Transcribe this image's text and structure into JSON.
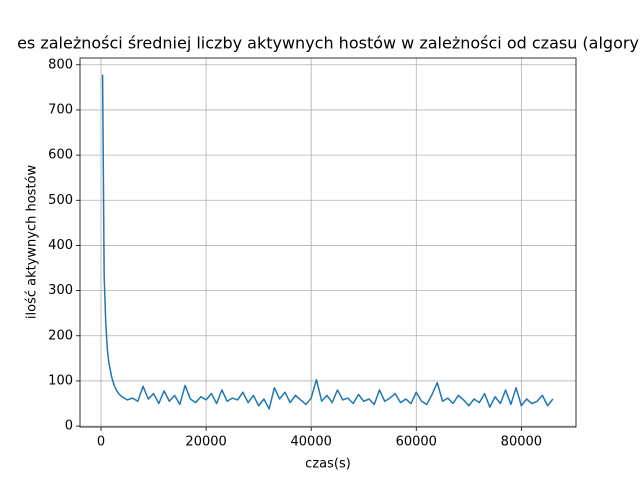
{
  "chart_data": {
    "type": "line",
    "title": "es zależności średniej liczby aktywnych hostów w zależności od czasu (algory",
    "x_label": "czas(s)",
    "y_label": "ilość aktywnych hostów",
    "color": "#1f77b4",
    "grid": true,
    "xlim": [
      -4000,
      90400
    ],
    "ylim": [
      -2,
      815
    ],
    "xticks": [
      0,
      20000,
      40000,
      60000,
      80000
    ],
    "yticks": [
      0,
      100,
      200,
      300,
      400,
      500,
      600,
      700,
      800
    ],
    "x": [
      300,
      600,
      900,
      1200,
      1500,
      2000,
      2500,
      3000,
      3500,
      4000,
      5000,
      6000,
      7000,
      8000,
      9000,
      10000,
      11000,
      12000,
      13000,
      14000,
      15000,
      16000,
      17000,
      18000,
      19000,
      20000,
      21000,
      22000,
      23000,
      24000,
      25000,
      26000,
      27000,
      28000,
      29000,
      30000,
      31000,
      32000,
      33000,
      34000,
      35000,
      36000,
      37000,
      38000,
      39000,
      40000,
      41000,
      42000,
      43000,
      44000,
      45000,
      46000,
      47000,
      48000,
      49000,
      50000,
      51000,
      52000,
      53000,
      54000,
      55000,
      56000,
      57000,
      58000,
      59000,
      60000,
      61000,
      62000,
      63000,
      64000,
      65000,
      66000,
      67000,
      68000,
      69000,
      70000,
      71000,
      72000,
      73000,
      74000,
      75000,
      76000,
      77000,
      78000,
      79000,
      80000,
      81000,
      82000,
      83000,
      84000,
      85000,
      86000
    ],
    "values": [
      778,
      330,
      230,
      170,
      140,
      110,
      90,
      78,
      70,
      65,
      58,
      62,
      55,
      88,
      60,
      72,
      50,
      78,
      55,
      68,
      48,
      90,
      60,
      52,
      65,
      58,
      72,
      50,
      80,
      55,
      62,
      58,
      75,
      52,
      68,
      45,
      60,
      38,
      85,
      60,
      75,
      52,
      68,
      58,
      48,
      62,
      103,
      55,
      68,
      52,
      80,
      58,
      62,
      50,
      70,
      55,
      60,
      48,
      80,
      55,
      62,
      72,
      52,
      60,
      50,
      75,
      55,
      48,
      70,
      96,
      55,
      62,
      50,
      68,
      58,
      45,
      60,
      52,
      72,
      42,
      65,
      50,
      80,
      48,
      85,
      45,
      60,
      50,
      55,
      68,
      45,
      60
    ]
  }
}
